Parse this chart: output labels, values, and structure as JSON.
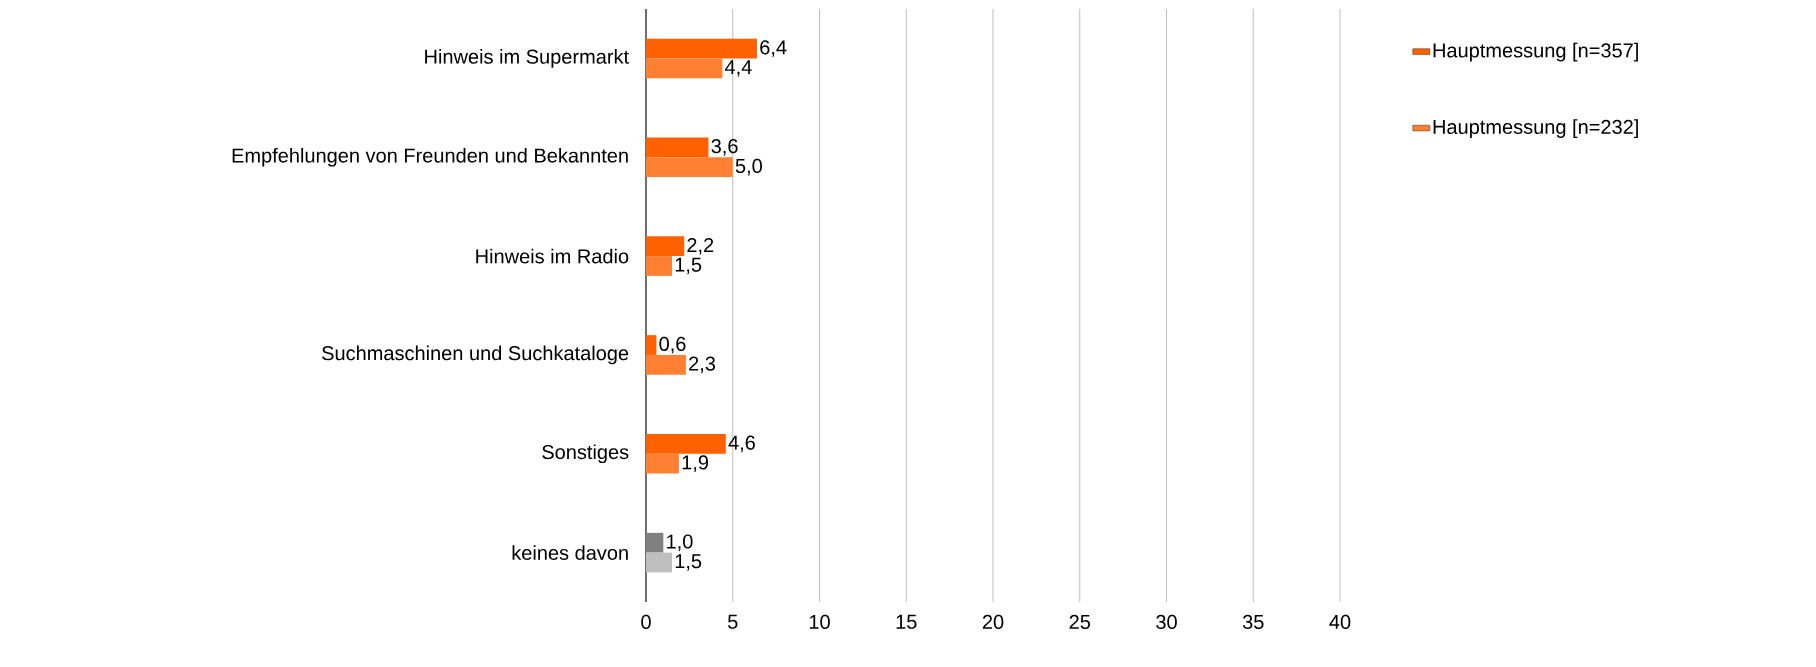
{
  "chart_data": {
    "type": "bar",
    "orientation": "horizontal",
    "categories": [
      "Hinweis im Supermarkt",
      "Empfehlungen von Freunden und Bekannten",
      "Hinweis im Radio",
      "Suchmaschinen und Suchkataloge",
      "Sonstiges",
      "keines davon"
    ],
    "series": [
      {
        "name": "Hauptmessung [n=357]",
        "color": "#ff6000",
        "colors": [
          "#ff6000",
          "#ff6000",
          "#ff6000",
          "#ff6000",
          "#ff6000",
          "#808080"
        ],
        "values": [
          6.4,
          3.6,
          2.2,
          0.6,
          4.6,
          1.0
        ],
        "value_labels": [
          "6,4",
          "3,6",
          "2,2",
          "0,6",
          "4,6",
          "1,0"
        ]
      },
      {
        "name": "Hauptmessung [n=232]",
        "color": "#ff8033",
        "colors": [
          "#ff8033",
          "#ff8033",
          "#ff8033",
          "#ff8033",
          "#ff8033",
          "#bfbfbf"
        ],
        "values": [
          4.4,
          5.0,
          1.5,
          2.3,
          1.9,
          1.5
        ],
        "value_labels": [
          "4,4",
          "5,0",
          "1,5",
          "2,3",
          "1,9",
          "1,5"
        ]
      }
    ],
    "xlim": [
      0,
      40
    ],
    "xticks": [
      0,
      5,
      10,
      15,
      20,
      25,
      30,
      35,
      40
    ],
    "grid": "x",
    "legend": "right"
  }
}
